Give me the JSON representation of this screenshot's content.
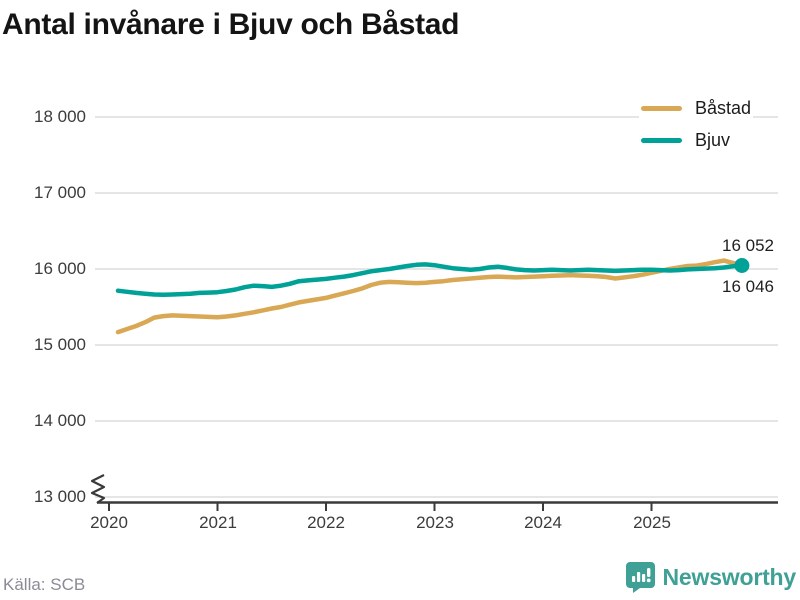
{
  "title": "Antal invånare i Bjuv och Båstad",
  "legend": {
    "items": [
      {
        "label": "Båstad",
        "color": "#D9A854"
      },
      {
        "label": "Bjuv",
        "color": "#00A297"
      }
    ]
  },
  "y_axis": {
    "ticks": [
      "18 000",
      "17 000",
      "16 000",
      "15 000",
      "14 000",
      "13 000"
    ]
  },
  "x_axis": {
    "years": [
      "2020",
      "2021",
      "2022",
      "2023",
      "2024",
      "2025"
    ]
  },
  "end_labels": {
    "bastad": "16 052",
    "bjuv": "16 046"
  },
  "footer": {
    "source": "Källa: SCB",
    "brand": "Newsworthy"
  },
  "colors": {
    "bastad": "#D9A854",
    "bjuv": "#00A297",
    "grid": "#E5E5E5",
    "axis": "#3A3A3A",
    "text": "#3C3C3C",
    "muted": "#8B8B96",
    "brand_teal": "#3FA096"
  },
  "chart_data": {
    "type": "line",
    "title": "Antal invånare i Bjuv och Båstad",
    "xlabel": "",
    "ylabel": "Antal invånare",
    "interval": "monthly",
    "x_start": "2020-02",
    "x_end": "2025-11",
    "ylim": [
      13000,
      18000
    ],
    "y_ticks": [
      18000,
      17000,
      16000,
      15000,
      14000,
      13000
    ],
    "x_tick_years": [
      2020,
      2021,
      2022,
      2023,
      2024,
      2025
    ],
    "axis_break": true,
    "grid": "horizontal",
    "legend_position": "top-right",
    "source": "SCB",
    "months": [
      "2020-02",
      "2020-03",
      "2020-04",
      "2020-05",
      "2020-06",
      "2020-07",
      "2020-08",
      "2020-09",
      "2020-10",
      "2020-11",
      "2020-12",
      "2021-01",
      "2021-02",
      "2021-03",
      "2021-04",
      "2021-05",
      "2021-06",
      "2021-07",
      "2021-08",
      "2021-09",
      "2021-10",
      "2021-11",
      "2021-12",
      "2022-01",
      "2022-02",
      "2022-03",
      "2022-04",
      "2022-05",
      "2022-06",
      "2022-07",
      "2022-08",
      "2022-09",
      "2022-10",
      "2022-11",
      "2022-12",
      "2023-01",
      "2023-02",
      "2023-03",
      "2023-04",
      "2023-05",
      "2023-06",
      "2023-07",
      "2023-08",
      "2023-09",
      "2023-10",
      "2023-11",
      "2023-12",
      "2024-01",
      "2024-02",
      "2024-03",
      "2024-04",
      "2024-05",
      "2024-06",
      "2024-07",
      "2024-08",
      "2024-09",
      "2024-10",
      "2024-11",
      "2024-12",
      "2025-01",
      "2025-02",
      "2025-03",
      "2025-04",
      "2025-05",
      "2025-06",
      "2025-07",
      "2025-08",
      "2025-09",
      "2025-10",
      "2025-11"
    ],
    "series": [
      {
        "name": "Båstad",
        "color": "#D9A854",
        "end_value": 16052,
        "end_marker": false,
        "values": [
          15170,
          15210,
          15250,
          15300,
          15360,
          15380,
          15390,
          15385,
          15380,
          15375,
          15370,
          15365,
          15375,
          15390,
          15410,
          15430,
          15455,
          15480,
          15500,
          15530,
          15560,
          15580,
          15600,
          15620,
          15650,
          15680,
          15710,
          15745,
          15790,
          15820,
          15830,
          15825,
          15820,
          15815,
          15820,
          15830,
          15840,
          15855,
          15865,
          15875,
          15885,
          15895,
          15900,
          15895,
          15890,
          15895,
          15900,
          15905,
          15910,
          15915,
          15920,
          15915,
          15910,
          15905,
          15895,
          15875,
          15890,
          15905,
          15925,
          15950,
          15975,
          16000,
          16020,
          16040,
          16045,
          16065,
          16090,
          16110,
          16080,
          16052
        ]
      },
      {
        "name": "Bjuv",
        "color": "#00A297",
        "end_value": 16046,
        "end_marker": true,
        "values": [
          15715,
          15700,
          15685,
          15675,
          15665,
          15660,
          15665,
          15670,
          15675,
          15685,
          15690,
          15695,
          15710,
          15730,
          15760,
          15780,
          15775,
          15765,
          15780,
          15805,
          15840,
          15850,
          15860,
          15870,
          15885,
          15900,
          15920,
          15945,
          15970,
          15985,
          16000,
          16020,
          16040,
          16055,
          16060,
          16050,
          16030,
          16010,
          16000,
          15990,
          16000,
          16020,
          16030,
          16015,
          15995,
          15985,
          15980,
          15985,
          15990,
          15985,
          15980,
          15985,
          15990,
          15985,
          15980,
          15975,
          15980,
          15985,
          15990,
          15990,
          15985,
          15980,
          15985,
          15995,
          16000,
          16005,
          16010,
          16020,
          16035,
          16046
        ]
      }
    ]
  }
}
